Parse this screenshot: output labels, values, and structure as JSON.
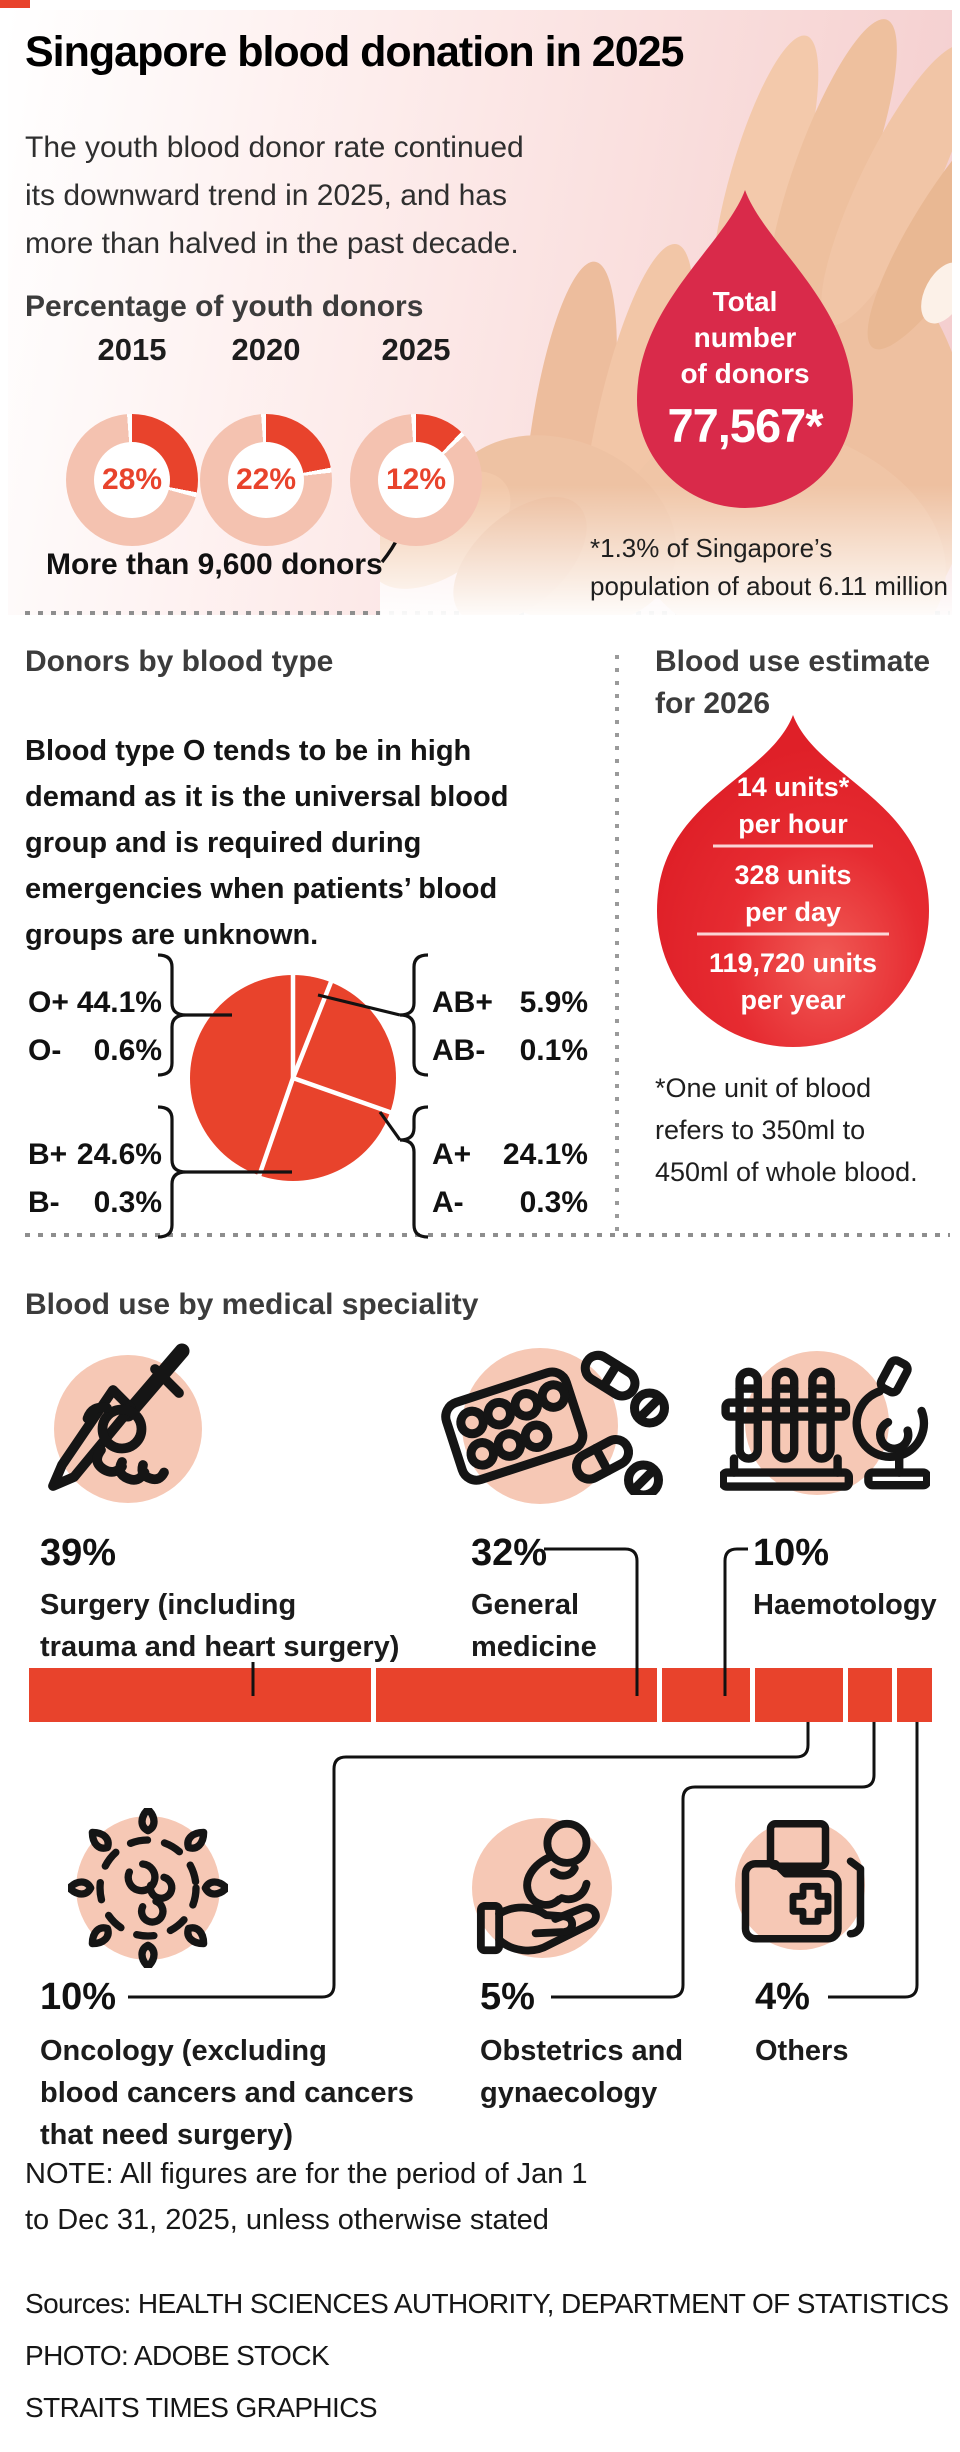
{
  "page": {
    "title": "Singapore blood donation in 2025",
    "intro_lines": [
      "The youth blood donor rate continued",
      "its downward trend in 2025, and has",
      "more than halved in the past decade."
    ]
  },
  "youth": {
    "heading": "Percentage of youth donors",
    "donuts": [
      {
        "year": "2015",
        "value": "28%"
      },
      {
        "year": "2020",
        "value": "22%"
      },
      {
        "year": "2025",
        "value": "12%"
      }
    ],
    "annotation": "More than 9,600 donors"
  },
  "hero": {
    "drop_lines": [
      "Total",
      "number",
      "of donors"
    ],
    "value": "77,567*",
    "footnote_lines": [
      "*1.3% of Singapore’s",
      "population of about 6.11 million"
    ]
  },
  "bt": {
    "heading": "Donors by blood type",
    "desc_lines": [
      "Blood type O tends to be in high",
      "demand as it is the universal blood",
      "group and is required during",
      "emergencies when patients’ blood",
      "groups are unknown."
    ],
    "groups": [
      {
        "rows": [
          [
            "O+",
            "44.1%"
          ],
          [
            "O-",
            "0.6%"
          ]
        ]
      },
      {
        "rows": [
          [
            "AB+",
            "5.9%"
          ],
          [
            "AB-",
            "0.1%"
          ]
        ]
      },
      {
        "rows": [
          [
            "B+",
            "24.6%"
          ],
          [
            "B-",
            "0.3%"
          ]
        ]
      },
      {
        "rows": [
          [
            "A+",
            "24.1%"
          ],
          [
            "A-",
            "0.3%"
          ]
        ]
      }
    ]
  },
  "est": {
    "heading_lines": [
      "Blood use estimate",
      "for 2026"
    ],
    "stats": [
      [
        "14 units*",
        "per hour"
      ],
      [
        "328 units",
        "per day"
      ],
      [
        "119,720 units",
        "per year"
      ]
    ],
    "footnote_lines": [
      "*One unit of blood",
      "refers to 350ml to",
      "450ml of whole blood."
    ]
  },
  "spec": {
    "heading": "Blood use by medical speciality",
    "top": [
      {
        "pct": "39%",
        "lines": [
          "Surgery (including",
          "trauma and heart surgery)"
        ]
      },
      {
        "pct": "32%",
        "lines": [
          "General",
          "medicine"
        ]
      },
      {
        "pct": "10%",
        "lines": [
          "Haemotology"
        ]
      }
    ],
    "bottom": [
      {
        "pct": "10%",
        "lines": [
          "Oncology (excluding",
          "blood cancers and cancers",
          "that need surgery)"
        ]
      },
      {
        "pct": "5%",
        "lines": [
          "Obstetrics and",
          "gynaecology"
        ]
      },
      {
        "pct": "4%",
        "lines": [
          "Others"
        ]
      }
    ]
  },
  "footer": {
    "note_lines": [
      "NOTE: All figures are for the period of Jan 1",
      "to Dec 31, 2025, unless otherwise stated"
    ],
    "sources": "Sources: HEALTH SCIENCES AUTHORITY, DEPARTMENT OF STATISTICS",
    "photo": "PHOTO: ADOBE STOCK",
    "credit": "STRAITS TIMES GRAPHICS"
  },
  "colors": {
    "accent_red": "#e8432c",
    "light_pink": "#f4c2b0",
    "icon_circle_pink": "#f6c8b5",
    "drop_crimson": "#d92a4a",
    "estimate_red": "#e42a2f",
    "text_dark": "#1a1a1a"
  },
  "chart_data": [
    {
      "type": "pie",
      "variant": "donut",
      "title": "Percentage of youth donors",
      "categories": [
        "2015",
        "2020",
        "2025"
      ],
      "values": [
        28,
        22,
        12
      ],
      "unit": "%",
      "annotation": "More than 9,600 donors (2025)"
    },
    {
      "type": "pie",
      "title": "Donors by blood type",
      "labels": [
        "O+",
        "O-",
        "AB+",
        "AB-",
        "B+",
        "B-",
        "A+",
        "A-"
      ],
      "values": [
        44.1,
        0.6,
        5.9,
        0.1,
        24.6,
        0.3,
        24.1,
        0.3
      ],
      "unit": "%",
      "slices_clockwise_from_top": [
        {
          "group": "AB",
          "value": 6.0
        },
        {
          "group": "A",
          "value": 24.4
        },
        {
          "group": "B",
          "value": 24.9
        },
        {
          "group": "O",
          "value": 44.7
        }
      ]
    },
    {
      "type": "bar",
      "title": "Blood use by medical speciality",
      "categories": [
        "Surgery (including trauma and heart surgery)",
        "General medicine",
        "Haemotology",
        "Oncology (excluding blood cancers and cancers that need surgery)",
        "Obstetrics and gynaecology",
        "Others"
      ],
      "values": [
        39,
        32,
        10,
        10,
        5,
        4
      ],
      "unit": "%"
    }
  ]
}
